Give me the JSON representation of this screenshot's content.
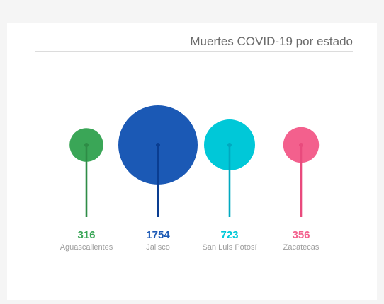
{
  "chart_data": {
    "type": "bubble",
    "title": "Muertes COVID-19 por estado",
    "categories": [
      "Aguascalientes",
      "Jalisco",
      "San Luis Potosí",
      "Zacatecas"
    ],
    "values": [
      316,
      1754,
      723,
      356
    ],
    "colors": [
      "#3aa657",
      "#1b59b5",
      "#00c8d8",
      "#f3608d"
    ],
    "stem_colors": [
      "#2e8c46",
      "#0a3d91",
      "#00a9c0",
      "#e94a7d"
    ],
    "legend": "none",
    "grid": false
  }
}
